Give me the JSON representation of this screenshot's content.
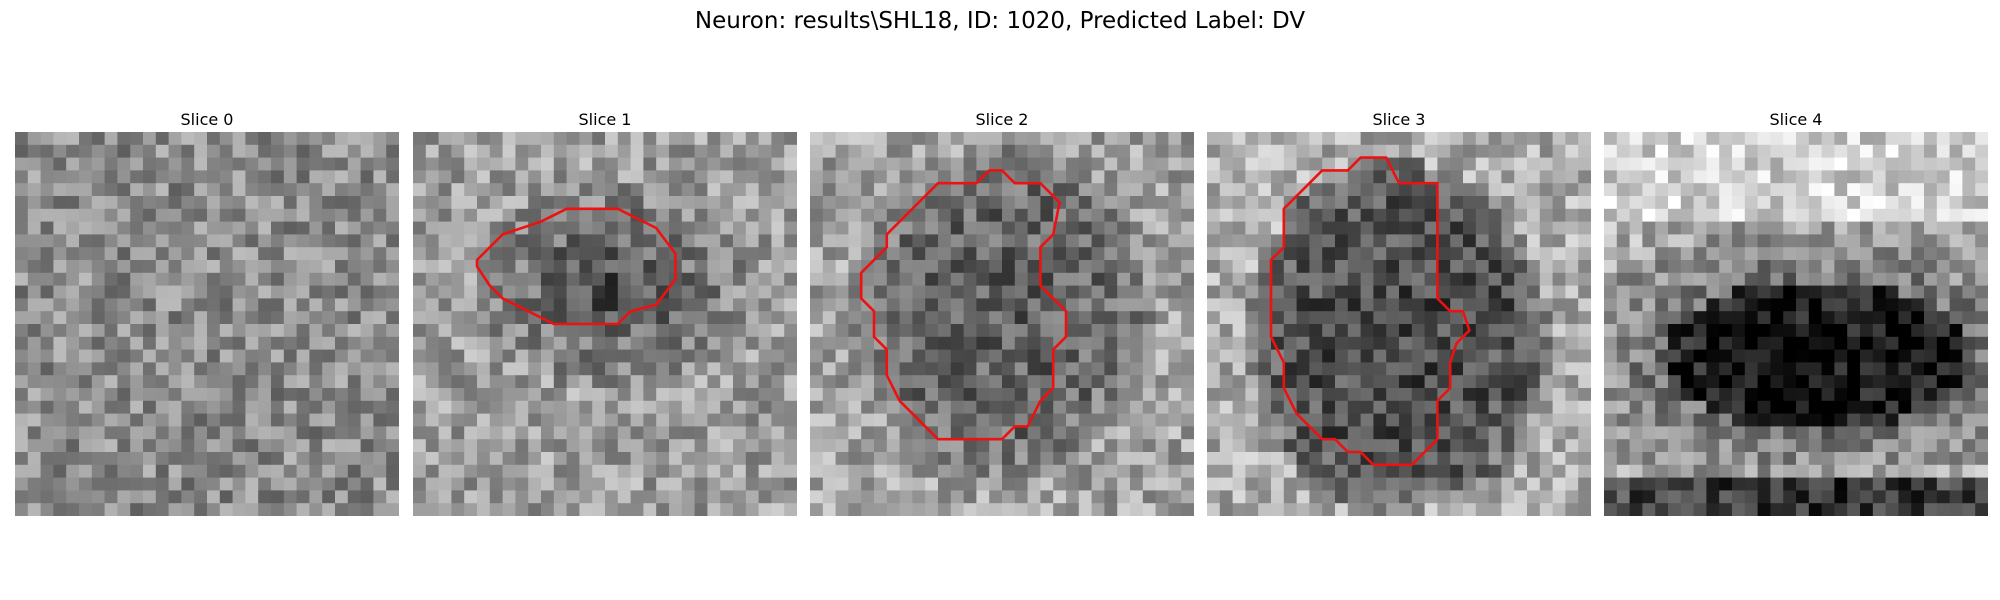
{
  "figure": {
    "title": "Neuron: results\\SHL18, ID: 1020, Predicted Label: DV"
  },
  "panels": [
    {
      "title": "Slice 0",
      "contour": false,
      "kind": "noise"
    },
    {
      "title": "Slice 1",
      "contour": true,
      "kind": "blob-small"
    },
    {
      "title": "Slice 2",
      "contour": true,
      "kind": "blob-medium"
    },
    {
      "title": "Slice 3",
      "contour": true,
      "kind": "blob-large"
    },
    {
      "title": "Slice 4",
      "contour": false,
      "kind": "dark-band"
    }
  ],
  "colors": {
    "contour": "#ee1111",
    "background": "#ffffff"
  },
  "image": {
    "grid": 30,
    "colormap": "grayscale"
  }
}
